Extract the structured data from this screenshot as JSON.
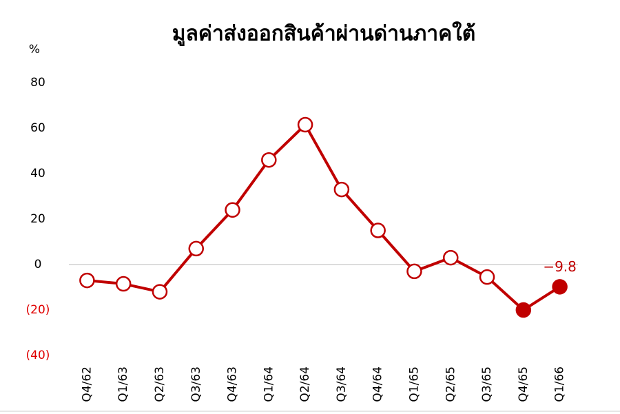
{
  "chart_data": {
    "type": "line",
    "title": "มูลค่าส่งออกสินค้าผ่านด่านภาคใต้",
    "y_unit": "%",
    "categories": [
      "Q4/62",
      "Q1/63",
      "Q2/63",
      "Q3/63",
      "Q4/63",
      "Q1/64",
      "Q2/64",
      "Q3/64",
      "Q4/64",
      "Q1/65",
      "Q2/65",
      "Q3/65",
      "Q4/65",
      "Q1/66"
    ],
    "values": [
      -7,
      -8.5,
      -12,
      7,
      24,
      46,
      61.5,
      33,
      15,
      -3,
      3,
      -5.5,
      -20,
      -9.8
    ],
    "value_labels": [
      null,
      null,
      null,
      null,
      null,
      null,
      null,
      null,
      null,
      null,
      null,
      null,
      null,
      "−9.8"
    ],
    "color": "#c00000",
    "marker_colors": [
      "#ffffff",
      "#ffffff",
      "#ffffff",
      "#ffffff",
      "#ffffff",
      "#ffffff",
      "#ffffff",
      "#ffffff",
      "#ffffff",
      "#ffffff",
      "#ffffff",
      "#ffffff",
      "#c00000",
      "#c00000"
    ],
    "negative_label_color": "#e00000",
    "ylim": [
      -40,
      80
    ],
    "yticks": [
      {
        "value": -40,
        "label": "(40)"
      },
      {
        "value": -20,
        "label": "(20)"
      },
      0,
      20,
      40,
      60,
      80
    ],
    "zero_line": true
  }
}
